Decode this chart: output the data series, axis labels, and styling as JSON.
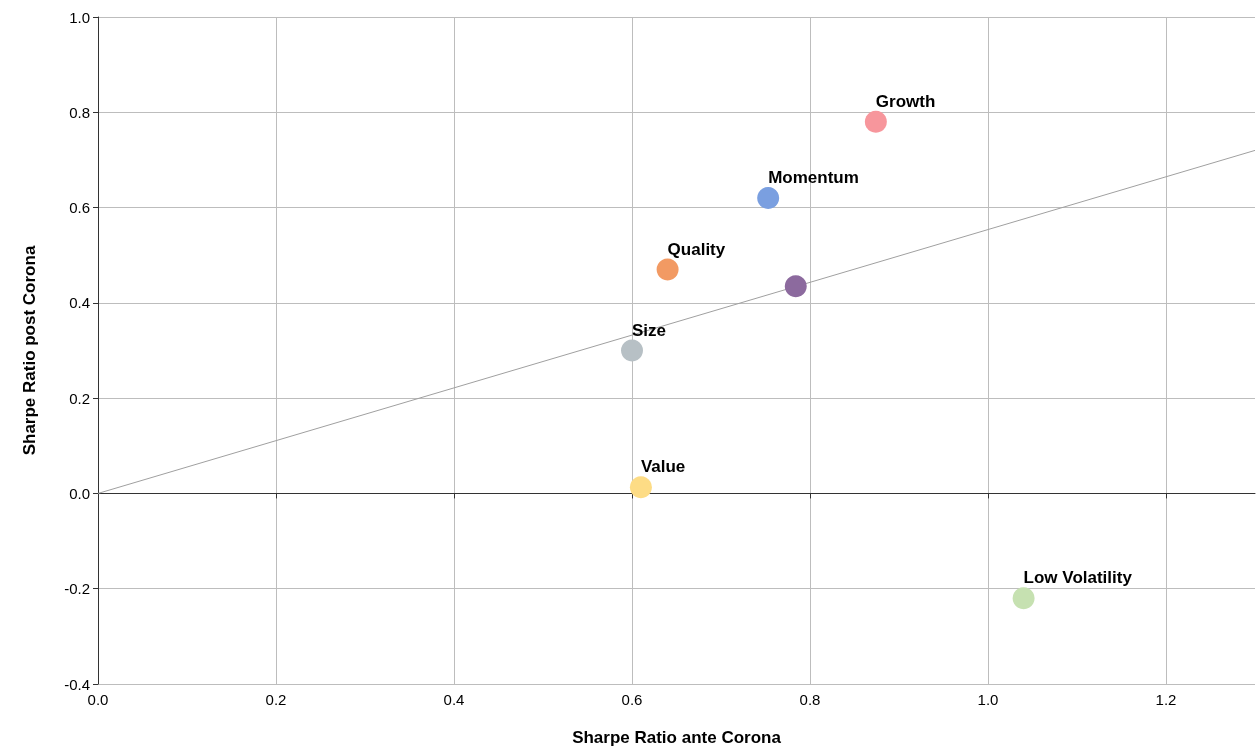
{
  "chart_data": {
    "type": "scatter",
    "xlabel": "Sharpe Ratio ante Corona",
    "ylabel": "Sharpe Ratio post Corona",
    "xlim": [
      0,
      1.3
    ],
    "xticks": [
      {
        "value": 0,
        "label": "0.0"
      },
      {
        "value": 0.2,
        "label": "0.2"
      },
      {
        "value": 0.4,
        "label": "0.4"
      },
      {
        "value": 0.6,
        "label": "0.6"
      },
      {
        "value": 0.8,
        "label": "0.8"
      },
      {
        "value": 1.0,
        "label": "1.0"
      },
      {
        "value": 1.2,
        "label": "1.2"
      }
    ],
    "ylim": [
      -0.4,
      1.0
    ],
    "yticks": [
      {
        "value": -0.4,
        "label": "-0.4"
      },
      {
        "value": -0.2,
        "label": "-0.2"
      },
      {
        "value": 0,
        "label": "0.0"
      },
      {
        "value": 0.2,
        "label": "0.2"
      },
      {
        "value": 0.4,
        "label": "0.4"
      },
      {
        "value": 0.6,
        "label": "0.6"
      },
      {
        "value": 0.8,
        "label": "0.8"
      },
      {
        "value": 1.0,
        "label": "1.0"
      }
    ],
    "grid": true,
    "legend": false,
    "marker": "circle",
    "series": [
      {
        "type": "line",
        "color": "#a0a0a0",
        "marker": "none",
        "line_style": "solid",
        "x": [
          0,
          1.3
        ],
        "values": [
          0,
          0.72
        ]
      },
      {
        "name": "Growth",
        "color": "#f7969c",
        "x": [
          0.874
        ],
        "values": [
          0.78
        ]
      },
      {
        "name": "Momentum",
        "color": "#7a9fe0",
        "x": [
          0.753
        ],
        "values": [
          0.62
        ]
      },
      {
        "name": "Quality",
        "color": "#f29a63",
        "x": [
          0.64
        ],
        "values": [
          0.47
        ]
      },
      {
        "color": "#8c6a9e",
        "x": [
          0.784
        ],
        "values": [
          0.435
        ]
      },
      {
        "name": "Size",
        "color": "#b7c0c5",
        "x": [
          0.6
        ],
        "values": [
          0.3
        ]
      },
      {
        "name": "Value",
        "color": "#fddc85",
        "x": [
          0.61
        ],
        "values": [
          0.013
        ]
      },
      {
        "name": "Low Volatility",
        "color": "#c6e1b1",
        "x": [
          1.04
        ],
        "values": [
          -0.22
        ]
      }
    ]
  }
}
